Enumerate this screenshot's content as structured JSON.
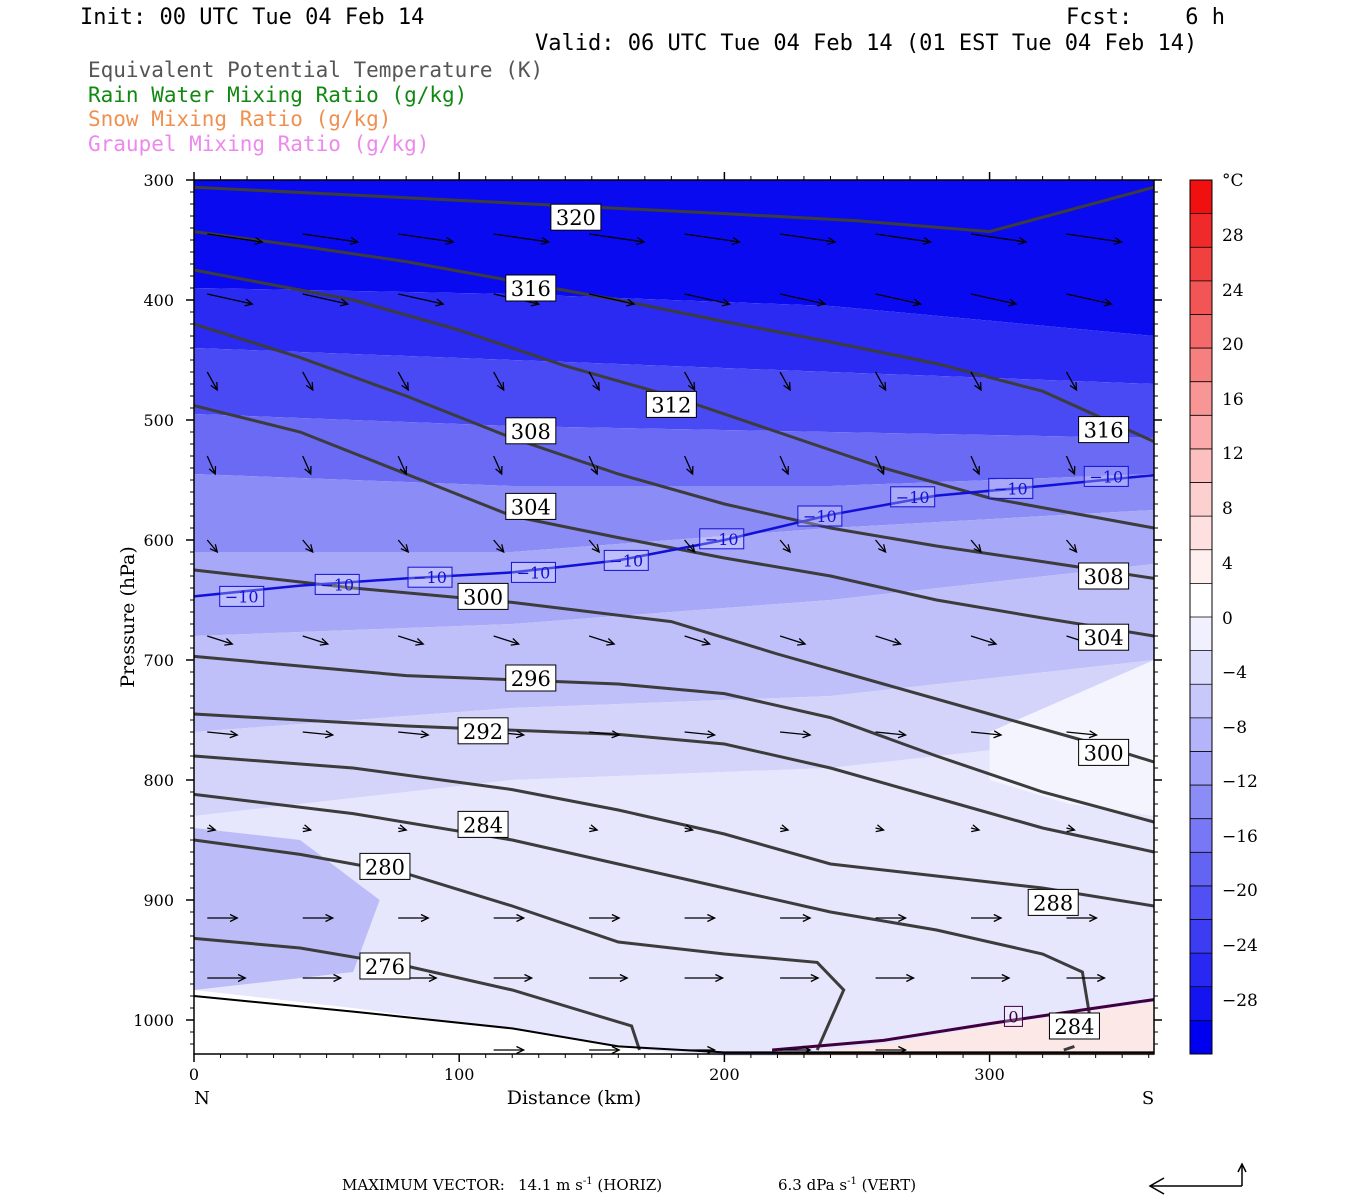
{
  "header": {
    "init": "Init: 00 UTC Tue 04 Feb 14",
    "fcst": "Fcst:    6 h",
    "valid": "Valid: 06 UTC Tue 04 Feb 14 (01 EST Tue 04 Feb 14)"
  },
  "fields": [
    {
      "label": "Equivalent Potential Temperature (K)",
      "color": "#555555"
    },
    {
      "label": "Rain Water Mixing Ratio (g/kg)",
      "color": "#118811"
    },
    {
      "label": "Snow Mixing Ratio (g/kg)",
      "color": "#f09050"
    },
    {
      "label": "Graupel Mixing Ratio (g/kg)",
      "color": "#ee88ee"
    }
  ],
  "footer": {
    "max_vector_label": "MAXIMUM VECTOR:",
    "horiz_value": "14.1 m s",
    "horiz_exp": "-1",
    "horiz_tag": "(HORIZ)",
    "vert_value": "6.3 dPa s",
    "vert_exp": "-1",
    "vert_tag": "(VERT)"
  },
  "chart_data": {
    "type": "cross-section",
    "xlabel": "Distance (km)",
    "ylabel": "Pressure (hPa)",
    "xlim": [
      0,
      362
    ],
    "ylim": [
      1030,
      300
    ],
    "x_ticks": [
      0,
      100,
      200,
      300
    ],
    "y_ticks": [
      300,
      400,
      500,
      600,
      700,
      800,
      900,
      1000
    ],
    "x_end_labels": [
      "N",
      "S"
    ],
    "colorbar": {
      "unit": "°C",
      "labels": [
        "28",
        "24",
        "20",
        "16",
        "12",
        "8",
        "4",
        "0",
        "−4",
        "−8",
        "−12",
        "−16",
        "−20",
        "−24",
        "−28"
      ],
      "min": -32,
      "max": 32,
      "step": 4,
      "colors": [
        "#0000f0",
        "#1414f0",
        "#2828f2",
        "#3c3cf2",
        "#5050f4",
        "#6464f4",
        "#7878f6",
        "#8c8cf6",
        "#a0a0f8",
        "#b4b4fa",
        "#c8c8fa",
        "#dcdcfc",
        "#f0f0fe",
        "#ffffff",
        "#fff0f0",
        "#ffe0e0",
        "#fdd0d0",
        "#fcc0c0",
        "#faaaaa",
        "#f89696",
        "#f68080",
        "#f46a6a",
        "#f25555",
        "#f04040",
        "#f02a2a",
        "#f01010"
      ]
    },
    "theta_e_contours": [
      {
        "label": "320",
        "points": [
          [
            0,
            306
          ],
          [
            100,
            317
          ],
          [
            200,
            328
          ],
          [
            250,
            334
          ],
          [
            300,
            343
          ],
          [
            362,
            306
          ]
        ]
      },
      {
        "label": "316",
        "points": [
          [
            0,
            343
          ],
          [
            40,
            355
          ],
          [
            80,
            368
          ],
          [
            120,
            384
          ],
          [
            160,
            400
          ],
          [
            200,
            418
          ],
          [
            240,
            435
          ],
          [
            280,
            453
          ],
          [
            320,
            476
          ],
          [
            362,
            518
          ]
        ]
      },
      {
        "label": "312",
        "points": [
          [
            0,
            375
          ],
          [
            60,
            400
          ],
          [
            100,
            425
          ],
          [
            140,
            455
          ],
          [
            180,
            480
          ],
          [
            220,
            510
          ],
          [
            260,
            540
          ],
          [
            300,
            565
          ],
          [
            362,
            590
          ]
        ]
      },
      {
        "label": "308",
        "points": [
          [
            0,
            420
          ],
          [
            40,
            448
          ],
          [
            80,
            480
          ],
          [
            120,
            515
          ],
          [
            160,
            545
          ],
          [
            200,
            570
          ],
          [
            240,
            590
          ],
          [
            280,
            605
          ],
          [
            320,
            618
          ],
          [
            362,
            632
          ]
        ]
      },
      {
        "label": "304",
        "points": [
          [
            0,
            488
          ],
          [
            40,
            510
          ],
          [
            80,
            545
          ],
          [
            120,
            580
          ],
          [
            160,
            598
          ],
          [
            200,
            615
          ],
          [
            240,
            630
          ],
          [
            280,
            650
          ],
          [
            320,
            665
          ],
          [
            362,
            680
          ]
        ]
      },
      {
        "label": "300",
        "points": [
          [
            0,
            625
          ],
          [
            60,
            640
          ],
          [
            120,
            652
          ],
          [
            180,
            668
          ],
          [
            220,
            695
          ],
          [
            260,
            720
          ],
          [
            300,
            745
          ],
          [
            340,
            770
          ],
          [
            362,
            785
          ]
        ]
      },
      {
        "label": "296",
        "points": [
          [
            0,
            697
          ],
          [
            80,
            713
          ],
          [
            160,
            720
          ],
          [
            200,
            728
          ],
          [
            240,
            748
          ],
          [
            280,
            780
          ],
          [
            320,
            810
          ],
          [
            362,
            835
          ]
        ]
      },
      {
        "label": "292",
        "points": [
          [
            0,
            745
          ],
          [
            80,
            755
          ],
          [
            160,
            762
          ],
          [
            200,
            770
          ],
          [
            240,
            790
          ],
          [
            280,
            815
          ],
          [
            320,
            840
          ],
          [
            362,
            860
          ]
        ]
      },
      {
        "label": "288",
        "points": [
          [
            0,
            780
          ],
          [
            60,
            790
          ],
          [
            120,
            808
          ],
          [
            160,
            825
          ],
          [
            200,
            845
          ],
          [
            240,
            870
          ],
          [
            280,
            880
          ],
          [
            320,
            890
          ],
          [
            362,
            905
          ]
        ]
      },
      {
        "label": "284",
        "points": [
          [
            0,
            812
          ],
          [
            60,
            828
          ],
          [
            120,
            850
          ],
          [
            160,
            870
          ],
          [
            200,
            890
          ],
          [
            240,
            910
          ],
          [
            280,
            925
          ],
          [
            320,
            945
          ],
          [
            335,
            960
          ],
          [
            338,
            1000
          ]
        ]
      },
      {
        "label": "280",
        "points": [
          [
            0,
            850
          ],
          [
            40,
            862
          ],
          [
            80,
            878
          ],
          [
            120,
            905
          ],
          [
            160,
            935
          ],
          [
            200,
            945
          ],
          [
            235,
            952
          ],
          [
            245,
            975
          ],
          [
            235,
            1025
          ]
        ]
      },
      {
        "label": "276",
        "points": [
          [
            0,
            932
          ],
          [
            40,
            940
          ],
          [
            80,
            955
          ],
          [
            120,
            975
          ],
          [
            150,
            995
          ],
          [
            165,
            1005
          ],
          [
            168,
            1025
          ]
        ]
      },
      {
        "label": "284",
        "points": [
          [
            328,
            1025
          ],
          [
            332,
            1022
          ]
        ]
      }
    ],
    "minus10_isotherm": [
      [
        0,
        647
      ],
      [
        40,
        638
      ],
      [
        80,
        632
      ],
      [
        120,
        627
      ],
      [
        160,
        617
      ],
      [
        200,
        600
      ],
      [
        240,
        579
      ],
      [
        280,
        563
      ],
      [
        320,
        555
      ],
      [
        362,
        546
      ]
    ],
    "zero_isotherm": [
      [
        218,
        1025
      ],
      [
        260,
        1017
      ],
      [
        300,
        1003
      ],
      [
        340,
        990
      ],
      [
        362,
        983
      ]
    ],
    "isotherm_labels": [
      {
        "text": "−10",
        "x": 18,
        "p": 647
      },
      {
        "text": "−10",
        "x": 54,
        "p": 637
      },
      {
        "text": "−10",
        "x": 89,
        "p": 631
      },
      {
        "text": "−10",
        "x": 128,
        "p": 627
      },
      {
        "text": "−10",
        "x": 163,
        "p": 617
      },
      {
        "text": "−10",
        "x": 199,
        "p": 599
      },
      {
        "text": "−10",
        "x": 236,
        "p": 580
      },
      {
        "text": "−10",
        "x": 271,
        "p": 564
      },
      {
        "text": "−10",
        "x": 308,
        "p": 557
      },
      {
        "text": "−10",
        "x": 344,
        "p": 547
      },
      {
        "text": "0",
        "x": 309,
        "p": 997
      }
    ],
    "contour_labels": [
      {
        "text": "320",
        "x": 144,
        "p": 331
      },
      {
        "text": "316",
        "x": 127,
        "p": 390
      },
      {
        "text": "312",
        "x": 180,
        "p": 487
      },
      {
        "text": "308",
        "x": 127,
        "p": 509
      },
      {
        "text": "304",
        "x": 127,
        "p": 572
      },
      {
        "text": "300",
        "x": 109,
        "p": 647
      },
      {
        "text": "296",
        "x": 127,
        "p": 715
      },
      {
        "text": "292",
        "x": 109,
        "p": 759
      },
      {
        "text": "284",
        "x": 109,
        "p": 837
      },
      {
        "text": "280",
        "x": 72,
        "p": 872
      },
      {
        "text": "276",
        "x": 72,
        "p": 955
      },
      {
        "text": "316",
        "x": 343,
        "p": 508
      },
      {
        "text": "308",
        "x": 343,
        "p": 630
      },
      {
        "text": "304",
        "x": 343,
        "p": 681
      },
      {
        "text": "300",
        "x": 343,
        "p": 777
      },
      {
        "text": "288",
        "x": 324,
        "p": 902
      },
      {
        "text": "284",
        "x": 332,
        "p": 1005
      }
    ]
  }
}
